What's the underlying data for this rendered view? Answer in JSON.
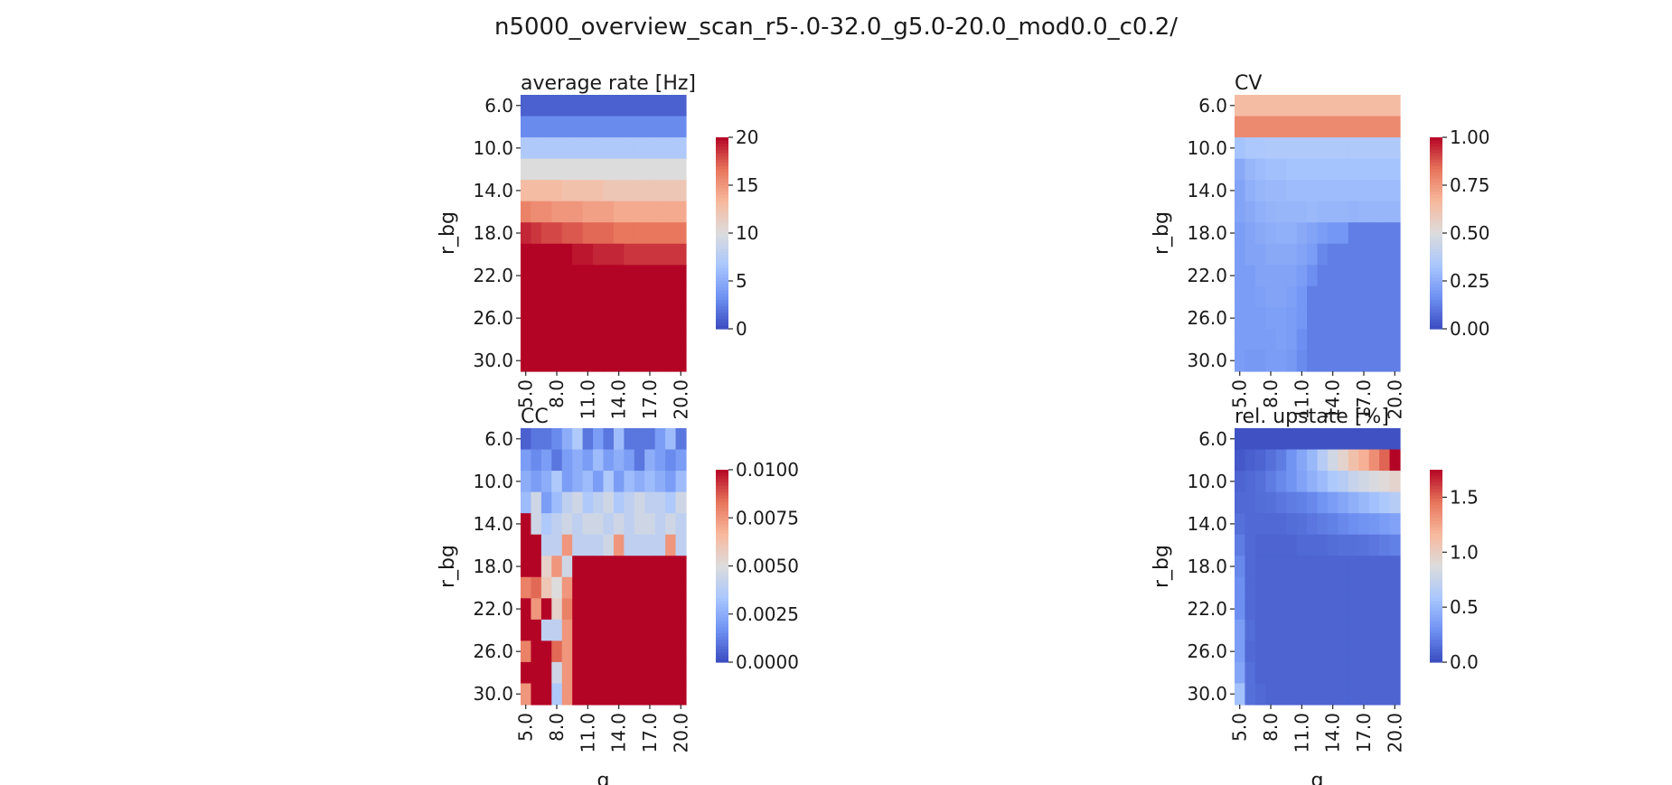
{
  "figure": {
    "suptitle": "n5000_overview_scan_r5-.0-32.0_g5.0-20.0_mod0.0_c0.2/"
  },
  "colors": {
    "colormap": "coolwarm",
    "cmap_stops": [
      "#3b4cc0",
      "#6f92f3",
      "#aac7fd",
      "#dddcdc",
      "#f7b89c",
      "#e7745b",
      "#b40426"
    ]
  },
  "chart_data": [
    {
      "type": "heatmap",
      "title": "average rate [Hz]",
      "xlabel": "",
      "ylabel": "r_bg",
      "rows": 13,
      "cols": 16,
      "x_ticks": [
        "5.0",
        "8.0",
        "11.0",
        "14.0",
        "17.0",
        "20.0"
      ],
      "y_ticks": [
        "6.0",
        "10.0",
        "14.0",
        "18.0",
        "22.0",
        "26.0",
        "30.0"
      ],
      "colorbar": {
        "ticks": [
          "0",
          "5",
          "10",
          "15",
          "20"
        ],
        "vmin": 0,
        "vmax": 20
      },
      "values": [
        [
          1,
          1,
          1,
          1,
          1,
          1,
          1,
          1,
          1,
          1,
          1,
          1,
          1,
          1,
          1,
          1
        ],
        [
          3,
          3,
          3,
          3,
          3,
          3,
          3,
          3,
          3,
          3,
          3,
          3,
          3,
          3,
          3,
          3
        ],
        [
          7,
          7,
          7,
          7,
          7,
          7,
          7,
          7,
          7,
          7,
          7,
          7,
          7,
          7,
          7,
          7
        ],
        [
          10,
          10,
          10,
          10,
          10,
          10,
          10,
          10,
          10,
          10,
          10,
          10,
          10,
          10,
          10,
          10
        ],
        [
          13,
          13,
          13,
          13,
          12.5,
          12.5,
          12.5,
          12.5,
          12,
          12,
          12,
          12,
          12,
          12,
          12,
          12
        ],
        [
          16,
          15.5,
          15.5,
          15,
          15,
          15,
          14.5,
          14.5,
          14.5,
          14,
          14,
          14,
          14,
          14,
          14,
          14
        ],
        [
          19,
          18.5,
          18,
          18,
          17.5,
          17.5,
          17,
          17,
          17,
          16.5,
          16.5,
          16.5,
          16.5,
          16.5,
          16.5,
          16.5
        ],
        [
          20,
          20,
          20,
          20,
          20,
          19.5,
          19.5,
          19,
          19,
          19,
          18.5,
          18.5,
          18.5,
          18.5,
          18.5,
          18.5
        ],
        [
          20,
          20,
          20,
          20,
          20,
          20,
          20,
          20,
          20,
          20,
          20,
          20,
          20,
          20,
          20,
          20
        ],
        [
          20,
          20,
          20,
          20,
          20,
          20,
          20,
          20,
          20,
          20,
          20,
          20,
          20,
          20,
          20,
          20
        ],
        [
          20,
          20,
          20,
          20,
          20,
          20,
          20,
          20,
          20,
          20,
          20,
          20,
          20,
          20,
          20,
          20
        ],
        [
          20,
          20,
          20,
          20,
          20,
          20,
          20,
          20,
          20,
          20,
          20,
          20,
          20,
          20,
          20,
          20
        ],
        [
          20,
          20,
          20,
          20,
          20,
          20,
          20,
          20,
          20,
          20,
          20,
          20,
          20,
          20,
          20,
          20
        ]
      ]
    },
    {
      "type": "heatmap",
      "title": "CV",
      "xlabel": "",
      "ylabel": "r_bg",
      "rows": 13,
      "cols": 16,
      "x_ticks": [
        "5.0",
        "8.0",
        "11.0",
        "14.0",
        "17.0",
        "20.0"
      ],
      "y_ticks": [
        "6.0",
        "10.0",
        "14.0",
        "18.0",
        "22.0",
        "26.0",
        "30.0"
      ],
      "colorbar": {
        "ticks": [
          "0.00",
          "0.25",
          "0.50",
          "0.75",
          "1.00"
        ],
        "vmin": 0,
        "vmax": 1
      },
      "values": [
        [
          0.65,
          0.65,
          0.65,
          0.65,
          0.65,
          0.65,
          0.65,
          0.65,
          0.65,
          0.65,
          0.65,
          0.65,
          0.65,
          0.65,
          0.65,
          0.65
        ],
        [
          0.78,
          0.78,
          0.78,
          0.78,
          0.78,
          0.78,
          0.78,
          0.78,
          0.78,
          0.78,
          0.78,
          0.78,
          0.78,
          0.78,
          0.78,
          0.78
        ],
        [
          0.32,
          0.34,
          0.34,
          0.35,
          0.35,
          0.35,
          0.35,
          0.35,
          0.35,
          0.35,
          0.35,
          0.35,
          0.35,
          0.35,
          0.35,
          0.35
        ],
        [
          0.24,
          0.28,
          0.3,
          0.31,
          0.31,
          0.32,
          0.32,
          0.32,
          0.32,
          0.32,
          0.32,
          0.32,
          0.32,
          0.32,
          0.32,
          0.32
        ],
        [
          0.22,
          0.26,
          0.28,
          0.29,
          0.29,
          0.3,
          0.3,
          0.3,
          0.3,
          0.3,
          0.3,
          0.3,
          0.3,
          0.3,
          0.3,
          0.3
        ],
        [
          0.22,
          0.24,
          0.26,
          0.27,
          0.28,
          0.28,
          0.28,
          0.29,
          0.28,
          0.28,
          0.28,
          0.27,
          0.28,
          0.28,
          0.28,
          0.28
        ],
        [
          0.2,
          0.22,
          0.24,
          0.25,
          0.26,
          0.26,
          0.24,
          0.22,
          0.2,
          0.18,
          0.18,
          0.12,
          0.12,
          0.12,
          0.12,
          0.12
        ],
        [
          0.2,
          0.22,
          0.22,
          0.24,
          0.24,
          0.24,
          0.22,
          0.2,
          0.14,
          0.12,
          0.12,
          0.12,
          0.12,
          0.12,
          0.12,
          0.12
        ],
        [
          0.2,
          0.2,
          0.22,
          0.22,
          0.22,
          0.22,
          0.2,
          0.16,
          0.12,
          0.12,
          0.12,
          0.12,
          0.12,
          0.12,
          0.12,
          0.12
        ],
        [
          0.2,
          0.2,
          0.21,
          0.22,
          0.22,
          0.21,
          0.18,
          0.12,
          0.12,
          0.12,
          0.12,
          0.12,
          0.12,
          0.12,
          0.12,
          0.12
        ],
        [
          0.2,
          0.2,
          0.2,
          0.21,
          0.21,
          0.2,
          0.18,
          0.12,
          0.12,
          0.12,
          0.12,
          0.12,
          0.12,
          0.12,
          0.12,
          0.12
        ],
        [
          0.2,
          0.2,
          0.2,
          0.2,
          0.21,
          0.2,
          0.16,
          0.12,
          0.12,
          0.12,
          0.12,
          0.12,
          0.12,
          0.12,
          0.12,
          0.12
        ],
        [
          0.2,
          0.19,
          0.19,
          0.2,
          0.2,
          0.19,
          0.15,
          0.12,
          0.12,
          0.12,
          0.12,
          0.12,
          0.12,
          0.12,
          0.12,
          0.12
        ]
      ]
    },
    {
      "type": "heatmap",
      "title": "CC",
      "xlabel": "g",
      "ylabel": "r_bg",
      "rows": 13,
      "cols": 16,
      "x_ticks": [
        "5.0",
        "8.0",
        "11.0",
        "14.0",
        "17.0",
        "20.0"
      ],
      "y_ticks": [
        "6.0",
        "10.0",
        "14.0",
        "18.0",
        "22.0",
        "26.0",
        "30.0"
      ],
      "colorbar": {
        "ticks": [
          "0.0000",
          "0.0025",
          "0.0050",
          "0.0075",
          "0.0100"
        ],
        "vmin": 0,
        "vmax": 0.01
      },
      "values": [
        [
          0.0005,
          0.001,
          0.001,
          0.0015,
          0.0025,
          0.0035,
          0.001,
          0.002,
          0.001,
          0.003,
          0.001,
          0.001,
          0.001,
          0.002,
          0.003,
          0.001
        ],
        [
          0.002,
          0.0015,
          0.002,
          0.001,
          0.002,
          0.0025,
          0.002,
          0.003,
          0.002,
          0.0025,
          0.002,
          0.001,
          0.0025,
          0.002,
          0.0015,
          0.002
        ],
        [
          0.0025,
          0.002,
          0.0025,
          0.0035,
          0.002,
          0.0025,
          0.003,
          0.002,
          0.0035,
          0.002,
          0.003,
          0.0025,
          0.003,
          0.0025,
          0.002,
          0.003
        ],
        [
          0.003,
          0.0045,
          0.002,
          0.003,
          0.004,
          0.0045,
          0.0035,
          0.004,
          0.0045,
          0.0035,
          0.004,
          0.0045,
          0.004,
          0.004,
          0.0035,
          0.0045
        ],
        [
          0.01,
          0.0045,
          0.0035,
          0.004,
          0.0045,
          0.004,
          0.0045,
          0.0045,
          0.004,
          0.0045,
          0.004,
          0.0045,
          0.0045,
          0.004,
          0.0045,
          0.004
        ],
        [
          0.01,
          0.01,
          0.004,
          0.004,
          0.0075,
          0.004,
          0.004,
          0.004,
          0.0045,
          0.0075,
          0.004,
          0.004,
          0.004,
          0.004,
          0.0075,
          0.004
        ],
        [
          0.01,
          0.01,
          0.0055,
          0.0075,
          0.0045,
          0.01,
          0.01,
          0.01,
          0.01,
          0.01,
          0.01,
          0.01,
          0.01,
          0.01,
          0.01,
          0.01
        ],
        [
          0.008,
          0.0085,
          0.006,
          0.005,
          0.0075,
          0.01,
          0.01,
          0.01,
          0.01,
          0.01,
          0.01,
          0.01,
          0.01,
          0.01,
          0.01,
          0.01
        ],
        [
          0.01,
          0.0075,
          0.01,
          0.0055,
          0.008,
          0.01,
          0.01,
          0.01,
          0.01,
          0.01,
          0.01,
          0.01,
          0.01,
          0.01,
          0.01,
          0.01
        ],
        [
          0.01,
          0.01,
          0.004,
          0.004,
          0.0075,
          0.01,
          0.01,
          0.01,
          0.01,
          0.01,
          0.01,
          0.01,
          0.01,
          0.01,
          0.01,
          0.01
        ],
        [
          0.008,
          0.01,
          0.01,
          0.0085,
          0.0075,
          0.01,
          0.01,
          0.01,
          0.01,
          0.01,
          0.01,
          0.01,
          0.01,
          0.01,
          0.01,
          0.01
        ],
        [
          0.01,
          0.01,
          0.01,
          0.0045,
          0.0075,
          0.01,
          0.01,
          0.01,
          0.01,
          0.01,
          0.01,
          0.01,
          0.01,
          0.01,
          0.01,
          0.01
        ],
        [
          0.0075,
          0.01,
          0.01,
          0.0035,
          0.0075,
          0.01,
          0.01,
          0.01,
          0.01,
          0.01,
          0.01,
          0.01,
          0.01,
          0.01,
          0.01,
          0.01
        ]
      ]
    },
    {
      "type": "heatmap",
      "title": "rel. upstate [%]",
      "xlabel": "g",
      "ylabel": "r_bg",
      "rows": 13,
      "cols": 16,
      "x_ticks": [
        "5.0",
        "8.0",
        "11.0",
        "14.0",
        "17.0",
        "20.0"
      ],
      "y_ticks": [
        "6.0",
        "10.0",
        "14.0",
        "18.0",
        "22.0",
        "26.0",
        "30.0"
      ],
      "colorbar": {
        "ticks": [
          "0.0",
          "0.5",
          "1.0",
          "1.5"
        ],
        "vmin": 0,
        "vmax": 1.75
      },
      "values": [
        [
          0.02,
          0.02,
          0.02,
          0.02,
          0.02,
          0.02,
          0.02,
          0.02,
          0.02,
          0.02,
          0.02,
          0.02,
          0.02,
          0.02,
          0.02,
          0.02
        ],
        [
          0.05,
          0.08,
          0.1,
          0.15,
          0.2,
          0.3,
          0.4,
          0.5,
          0.65,
          0.8,
          0.95,
          1.1,
          1.2,
          1.35,
          1.5,
          1.75
        ],
        [
          0.1,
          0.12,
          0.15,
          0.2,
          0.25,
          0.3,
          0.38,
          0.45,
          0.52,
          0.6,
          0.65,
          0.75,
          0.8,
          0.85,
          0.9,
          0.95
        ],
        [
          0.12,
          0.12,
          0.14,
          0.15,
          0.18,
          0.2,
          0.22,
          0.25,
          0.3,
          0.35,
          0.4,
          0.45,
          0.5,
          0.55,
          0.6,
          0.65
        ],
        [
          0.15,
          0.12,
          0.12,
          0.12,
          0.12,
          0.14,
          0.15,
          0.18,
          0.2,
          0.22,
          0.25,
          0.28,
          0.3,
          0.32,
          0.35,
          0.38
        ],
        [
          0.2,
          0.12,
          0.1,
          0.1,
          0.1,
          0.1,
          0.12,
          0.12,
          0.12,
          0.14,
          0.15,
          0.15,
          0.16,
          0.18,
          0.2,
          0.22
        ],
        [
          0.25,
          0.12,
          0.1,
          0.1,
          0.1,
          0.1,
          0.1,
          0.1,
          0.1,
          0.1,
          0.1,
          0.1,
          0.1,
          0.1,
          0.1,
          0.1
        ],
        [
          0.28,
          0.12,
          0.1,
          0.1,
          0.1,
          0.1,
          0.1,
          0.1,
          0.1,
          0.1,
          0.1,
          0.1,
          0.1,
          0.1,
          0.1,
          0.1
        ],
        [
          0.28,
          0.12,
          0.1,
          0.1,
          0.1,
          0.1,
          0.1,
          0.1,
          0.1,
          0.1,
          0.1,
          0.1,
          0.1,
          0.1,
          0.1,
          0.1
        ],
        [
          0.35,
          0.14,
          0.1,
          0.1,
          0.1,
          0.1,
          0.1,
          0.1,
          0.1,
          0.1,
          0.1,
          0.1,
          0.1,
          0.1,
          0.1,
          0.1
        ],
        [
          0.35,
          0.12,
          0.1,
          0.1,
          0.1,
          0.1,
          0.1,
          0.1,
          0.1,
          0.1,
          0.1,
          0.1,
          0.1,
          0.1,
          0.1,
          0.1
        ],
        [
          0.4,
          0.15,
          0.1,
          0.1,
          0.1,
          0.1,
          0.1,
          0.1,
          0.1,
          0.1,
          0.1,
          0.1,
          0.1,
          0.1,
          0.1,
          0.1
        ],
        [
          0.55,
          0.15,
          0.12,
          0.1,
          0.1,
          0.1,
          0.1,
          0.1,
          0.1,
          0.1,
          0.1,
          0.1,
          0.1,
          0.1,
          0.1,
          0.1
        ]
      ]
    }
  ]
}
